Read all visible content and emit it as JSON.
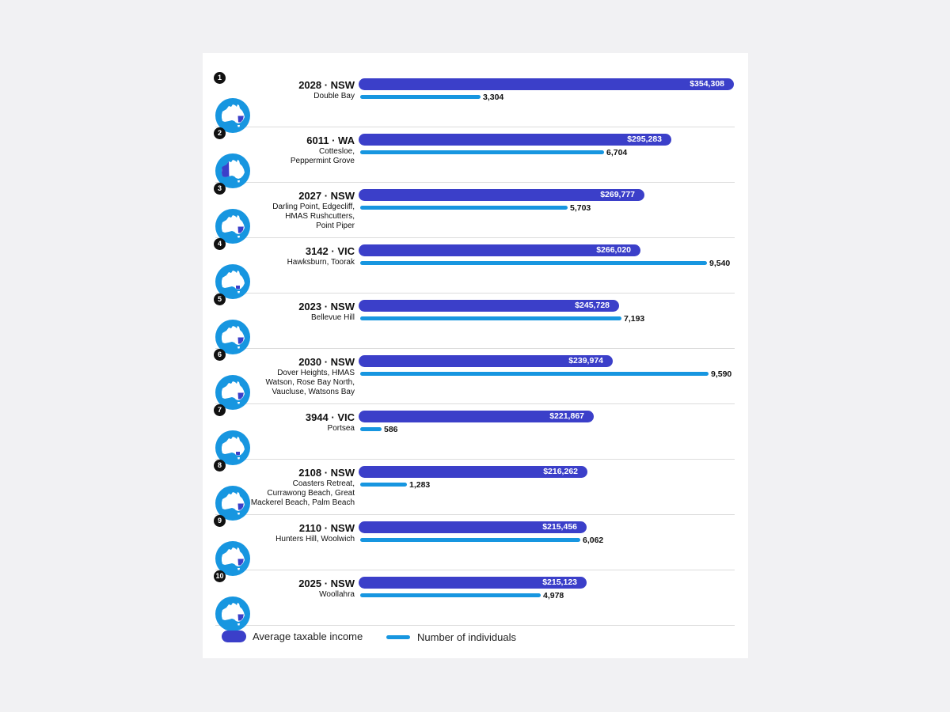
{
  "colors": {
    "income": "#3b3fc9",
    "individuals": "#1796e0",
    "map_circle": "#1796e0",
    "highlight": "#3b3fc9"
  },
  "chart_data": {
    "type": "bar",
    "orientation": "horizontal",
    "categories": [
      "2028 · NSW",
      "6011 · WA",
      "2027 · NSW",
      "3142 · VIC",
      "2023 · NSW",
      "2030 · NSW",
      "3944 · VIC",
      "2108 · NSW",
      "2110 · NSW",
      "2025 · NSW"
    ],
    "series": [
      {
        "name": "Average taxable income",
        "values": [
          354308,
          295283,
          269777,
          266020,
          245728,
          239974,
          221867,
          216262,
          215456,
          215123
        ]
      },
      {
        "name": "Number of individuals",
        "values": [
          3304,
          6704,
          5703,
          9540,
          7193,
          9590,
          586,
          1283,
          6062,
          4978
        ]
      }
    ],
    "legend": {
      "position": "bottom-left",
      "entries": [
        "Average taxable income",
        "Number of individuals"
      ]
    },
    "rows": [
      {
        "rank": "1",
        "postcode": "2028 · NSW",
        "suburbs": [
          "Double Bay"
        ],
        "state": "NSW",
        "income": 354308,
        "income_label": "$354,308",
        "individuals": 3304,
        "individuals_label": "3,304"
      },
      {
        "rank": "2",
        "postcode": "6011 · WA",
        "suburbs": [
          "Cottesloe,",
          "Peppermint Grove"
        ],
        "state": "WA",
        "income": 295283,
        "income_label": "$295,283",
        "individuals": 6704,
        "individuals_label": "6,704"
      },
      {
        "rank": "3",
        "postcode": "2027 · NSW",
        "suburbs": [
          "Darling Point, Edgecliff,",
          "HMAS Rushcutters,",
          "Point Piper"
        ],
        "state": "NSW",
        "income": 269777,
        "income_label": "$269,777",
        "individuals": 5703,
        "individuals_label": "5,703"
      },
      {
        "rank": "4",
        "postcode": "3142 · VIC",
        "suburbs": [
          "Hawksburn, Toorak"
        ],
        "state": "VIC",
        "income": 266020,
        "income_label": "$266,020",
        "individuals": 9540,
        "individuals_label": "9,540"
      },
      {
        "rank": "5",
        "postcode": "2023 · NSW",
        "suburbs": [
          "Bellevue Hill"
        ],
        "state": "NSW",
        "income": 245728,
        "income_label": "$245,728",
        "individuals": 7193,
        "individuals_label": "7,193"
      },
      {
        "rank": "6",
        "postcode": "2030 · NSW",
        "suburbs": [
          "Dover Heights, HMAS",
          "Watson, Rose Bay North,",
          "Vaucluse, Watsons Bay"
        ],
        "state": "NSW",
        "income": 239974,
        "income_label": "$239,974",
        "individuals": 9590,
        "individuals_label": "9,590"
      },
      {
        "rank": "7",
        "postcode": "3944 · VIC",
        "suburbs": [
          "Portsea"
        ],
        "state": "VIC",
        "income": 221867,
        "income_label": "$221,867",
        "individuals": 586,
        "individuals_label": "586"
      },
      {
        "rank": "8",
        "postcode": "2108 · NSW",
        "suburbs": [
          "Coasters Retreat,",
          "Currawong Beach, Great",
          "Mackerel Beach, Palm Beach"
        ],
        "state": "NSW",
        "income": 216262,
        "income_label": "$216,262",
        "individuals": 1283,
        "individuals_label": "1,283"
      },
      {
        "rank": "9",
        "postcode": "2110 · NSW",
        "suburbs": [
          "Hunters Hill, Woolwich"
        ],
        "state": "NSW",
        "income": 215456,
        "income_label": "$215,456",
        "individuals": 6062,
        "individuals_label": "6,062"
      },
      {
        "rank": "10",
        "postcode": "2025 · NSW",
        "suburbs": [
          "Woollahra"
        ],
        "state": "NSW",
        "income": 215123,
        "income_label": "$215,123",
        "individuals": 4978,
        "individuals_label": "4,978"
      }
    ]
  }
}
